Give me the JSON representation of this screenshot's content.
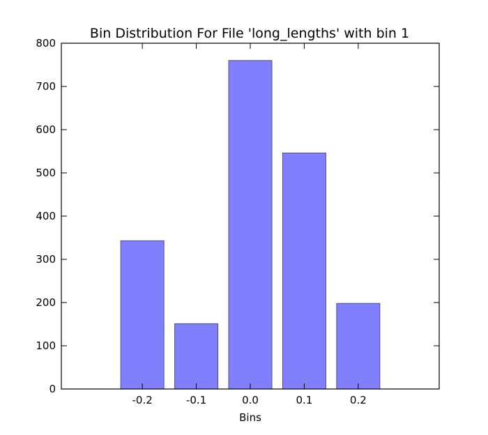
{
  "chart_data": {
    "type": "bar",
    "title": "Bin Distribution For File 'long_lengths' with bin 1",
    "xlabel": "Bins",
    "ylabel": "",
    "categories": [
      "-0.2",
      "-0.1",
      "0.0",
      "0.1",
      "0.2"
    ],
    "values": [
      343,
      151,
      760,
      546,
      198
    ],
    "ylim": [
      0,
      800
    ],
    "yticks": [
      "0",
      "100",
      "200",
      "300",
      "400",
      "500",
      "600",
      "700",
      "800"
    ],
    "grid": false,
    "legend": "none",
    "colors": {
      "bar_fill": "#8080ff",
      "bar_stroke": "#4d4d80",
      "axes": "#000000",
      "background": "#ffffff"
    }
  }
}
